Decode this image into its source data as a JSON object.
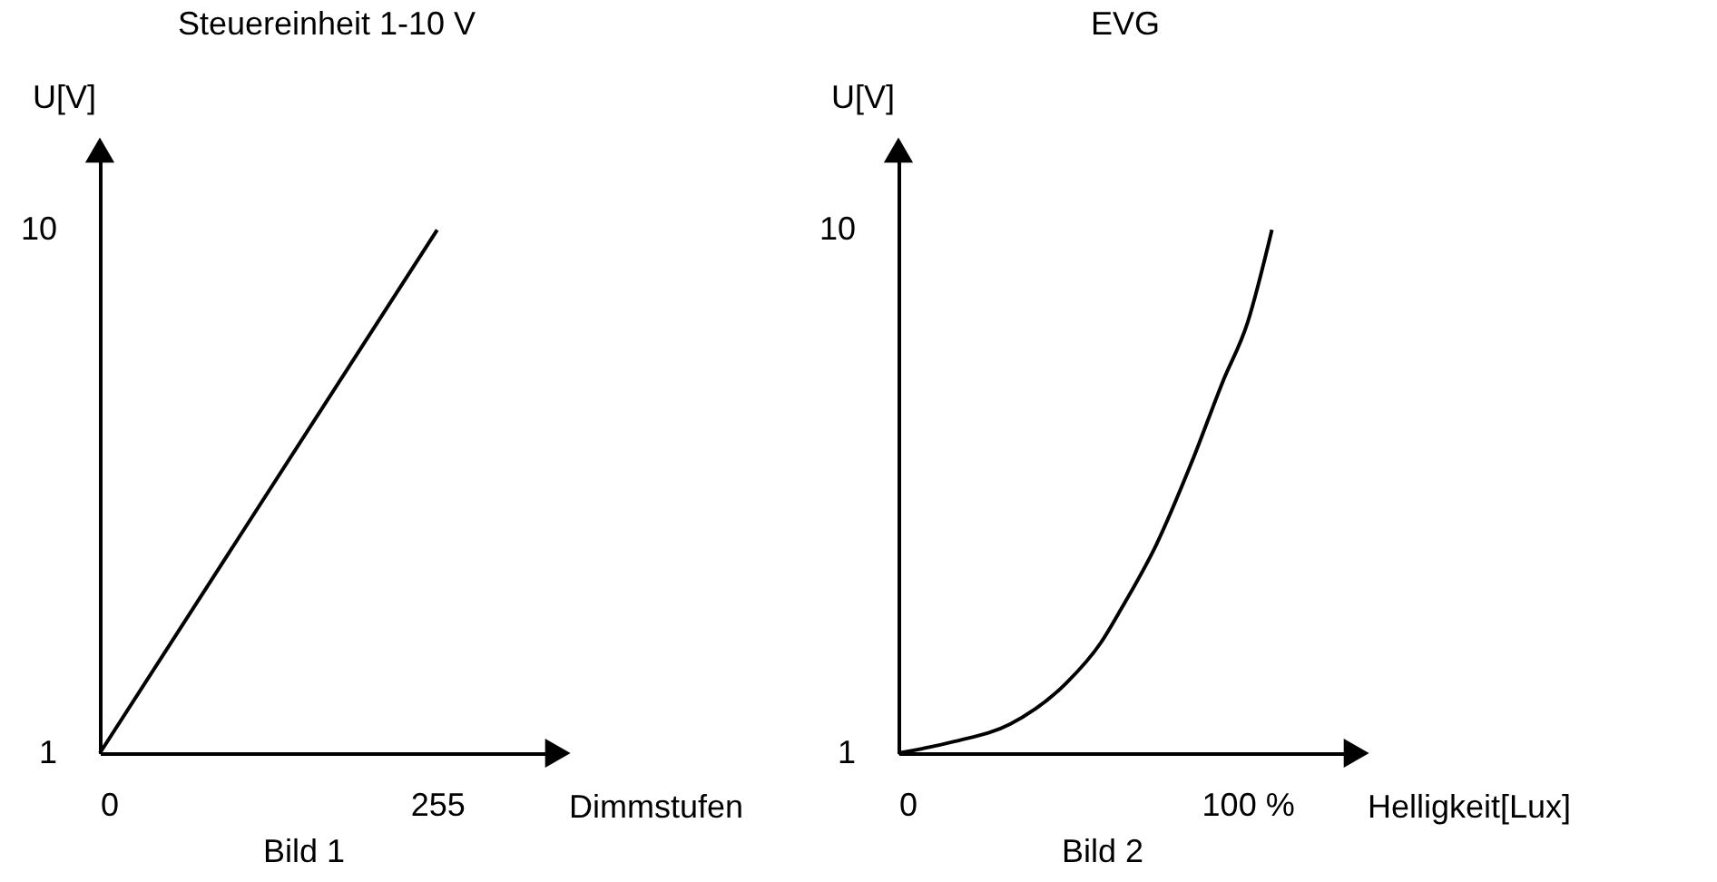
{
  "chart_data": [
    {
      "type": "line",
      "title": "Steuereinheit 1-10 V",
      "xlabel": "Dimmstufen",
      "ylabel": "U[V]",
      "annotations": [
        "Bild 1"
      ],
      "x": [
        0,
        255
      ],
      "series": [
        {
          "color": "#000000",
          "values": [
            1,
            10
          ]
        }
      ],
      "xlim": [
        0,
        343
      ],
      "ylim": [
        1,
        11.3
      ],
      "xticks": [
        0,
        255
      ],
      "yticks": [
        1,
        10
      ],
      "marker": "none",
      "line_style": "solid"
    },
    {
      "type": "line",
      "title": "EVG",
      "xlabel": "Helligkeit[Lux]",
      "ylabel": "U[V]",
      "annotations": [
        "Bild 2"
      ],
      "x": [
        0,
        16,
        32,
        48,
        58,
        64,
        74,
        84,
        93,
        100,
        107
      ],
      "series": [
        {
          "color": "#000000",
          "values": [
            1,
            1.2,
            1.5,
            2.2,
            2.9,
            3.5,
            4.6,
            6,
            7.4,
            8.4,
            10
          ]
        }
      ],
      "xlim": [
        0,
        130
      ],
      "ylim": [
        1,
        11.3
      ],
      "xticks": [
        0,
        {
          "value": 100,
          "label": "100 %"
        }
      ],
      "yticks": [
        1,
        10
      ],
      "marker": "none",
      "line_style": "solid"
    }
  ]
}
